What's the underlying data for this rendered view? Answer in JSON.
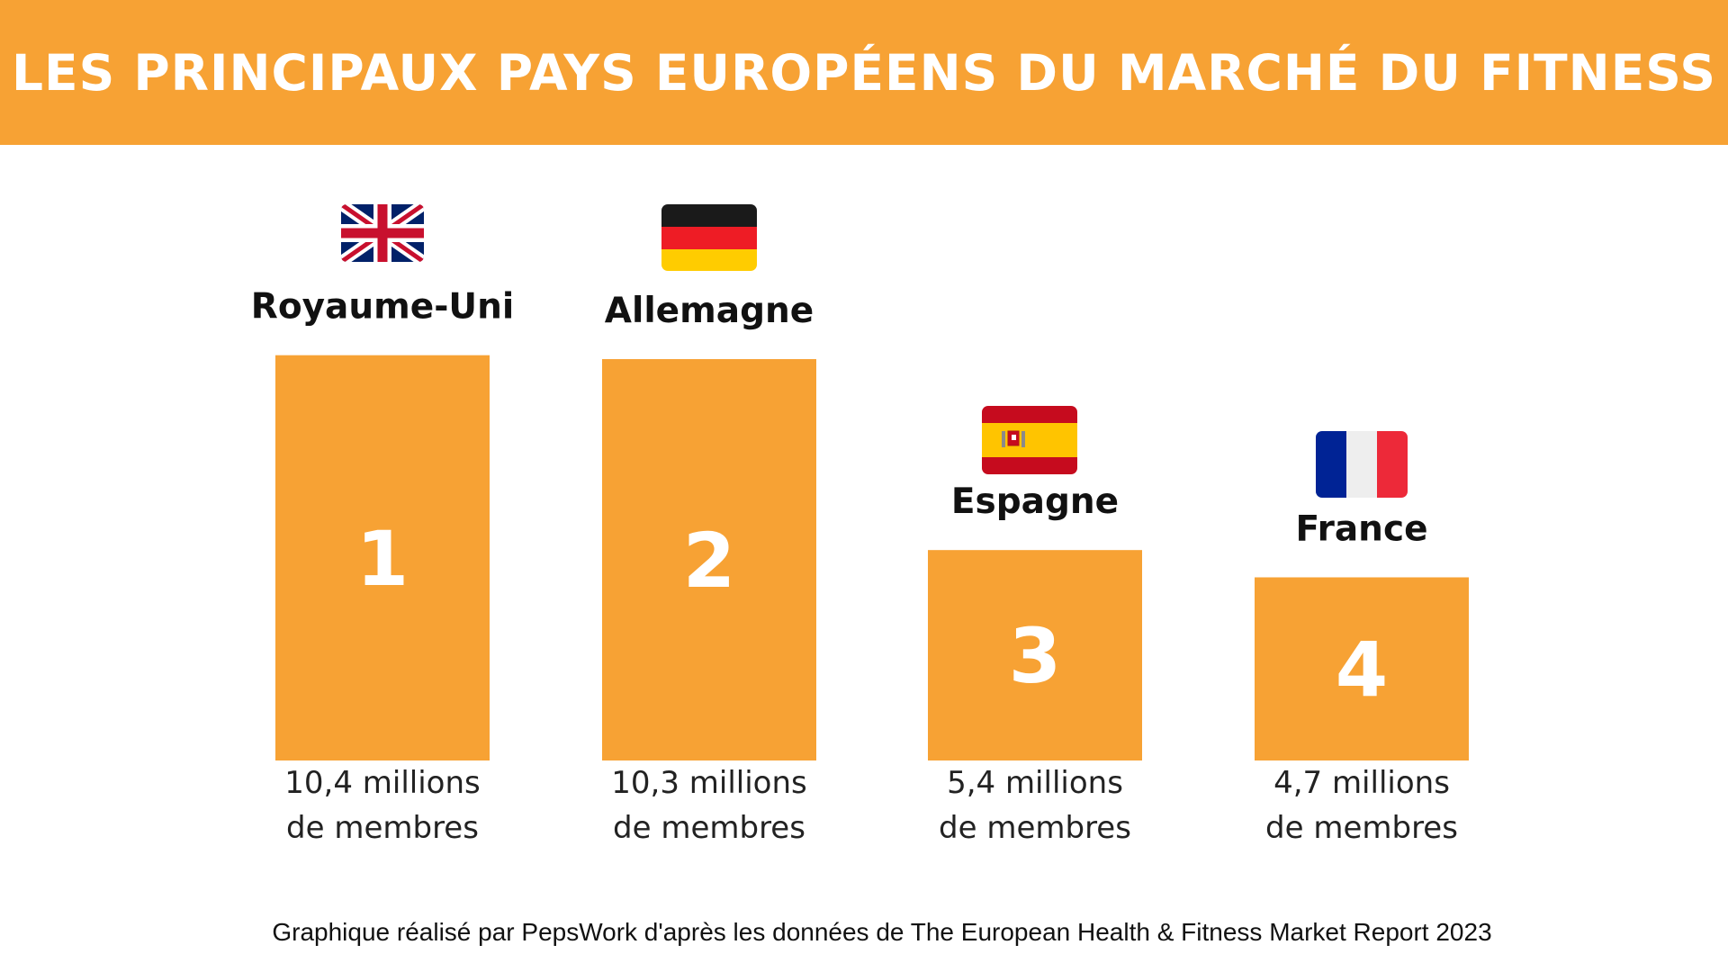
{
  "header": {
    "title": "LES PRINCIPAUX PAYS EUROPÉENS DU MARCHÉ DU FITNESS"
  },
  "colors": {
    "accent": "#F7A234",
    "background": "#FFFFFF",
    "text": "#111111"
  },
  "chart_data": {
    "type": "bar",
    "title": "LES PRINCIPAUX PAYS EUROPÉENS DU MARCHÉ DU FITNESS",
    "categories": [
      "Royaume-Uni",
      "Allemagne",
      "Espagne",
      "France"
    ],
    "ranks": [
      "1",
      "2",
      "3",
      "4"
    ],
    "values": [
      10.4,
      10.3,
      5.4,
      4.7
    ],
    "value_labels_line1": [
      "10,4 millions",
      "10,3 millions",
      "5,4 millions",
      "4,7 millions"
    ],
    "value_labels_line2": [
      "de membres",
      "de membres",
      "de membres",
      "de membres"
    ],
    "flags": [
      "united-kingdom-flag-icon",
      "germany-flag-icon",
      "spain-flag-icon",
      "france-flag-icon"
    ],
    "unit": "millions de membres",
    "grid": false,
    "legend": "none"
  },
  "footer": {
    "source": "Graphique réalisé par PepsWork d'après les données de The European Health & Fitness Market Report 2023"
  }
}
